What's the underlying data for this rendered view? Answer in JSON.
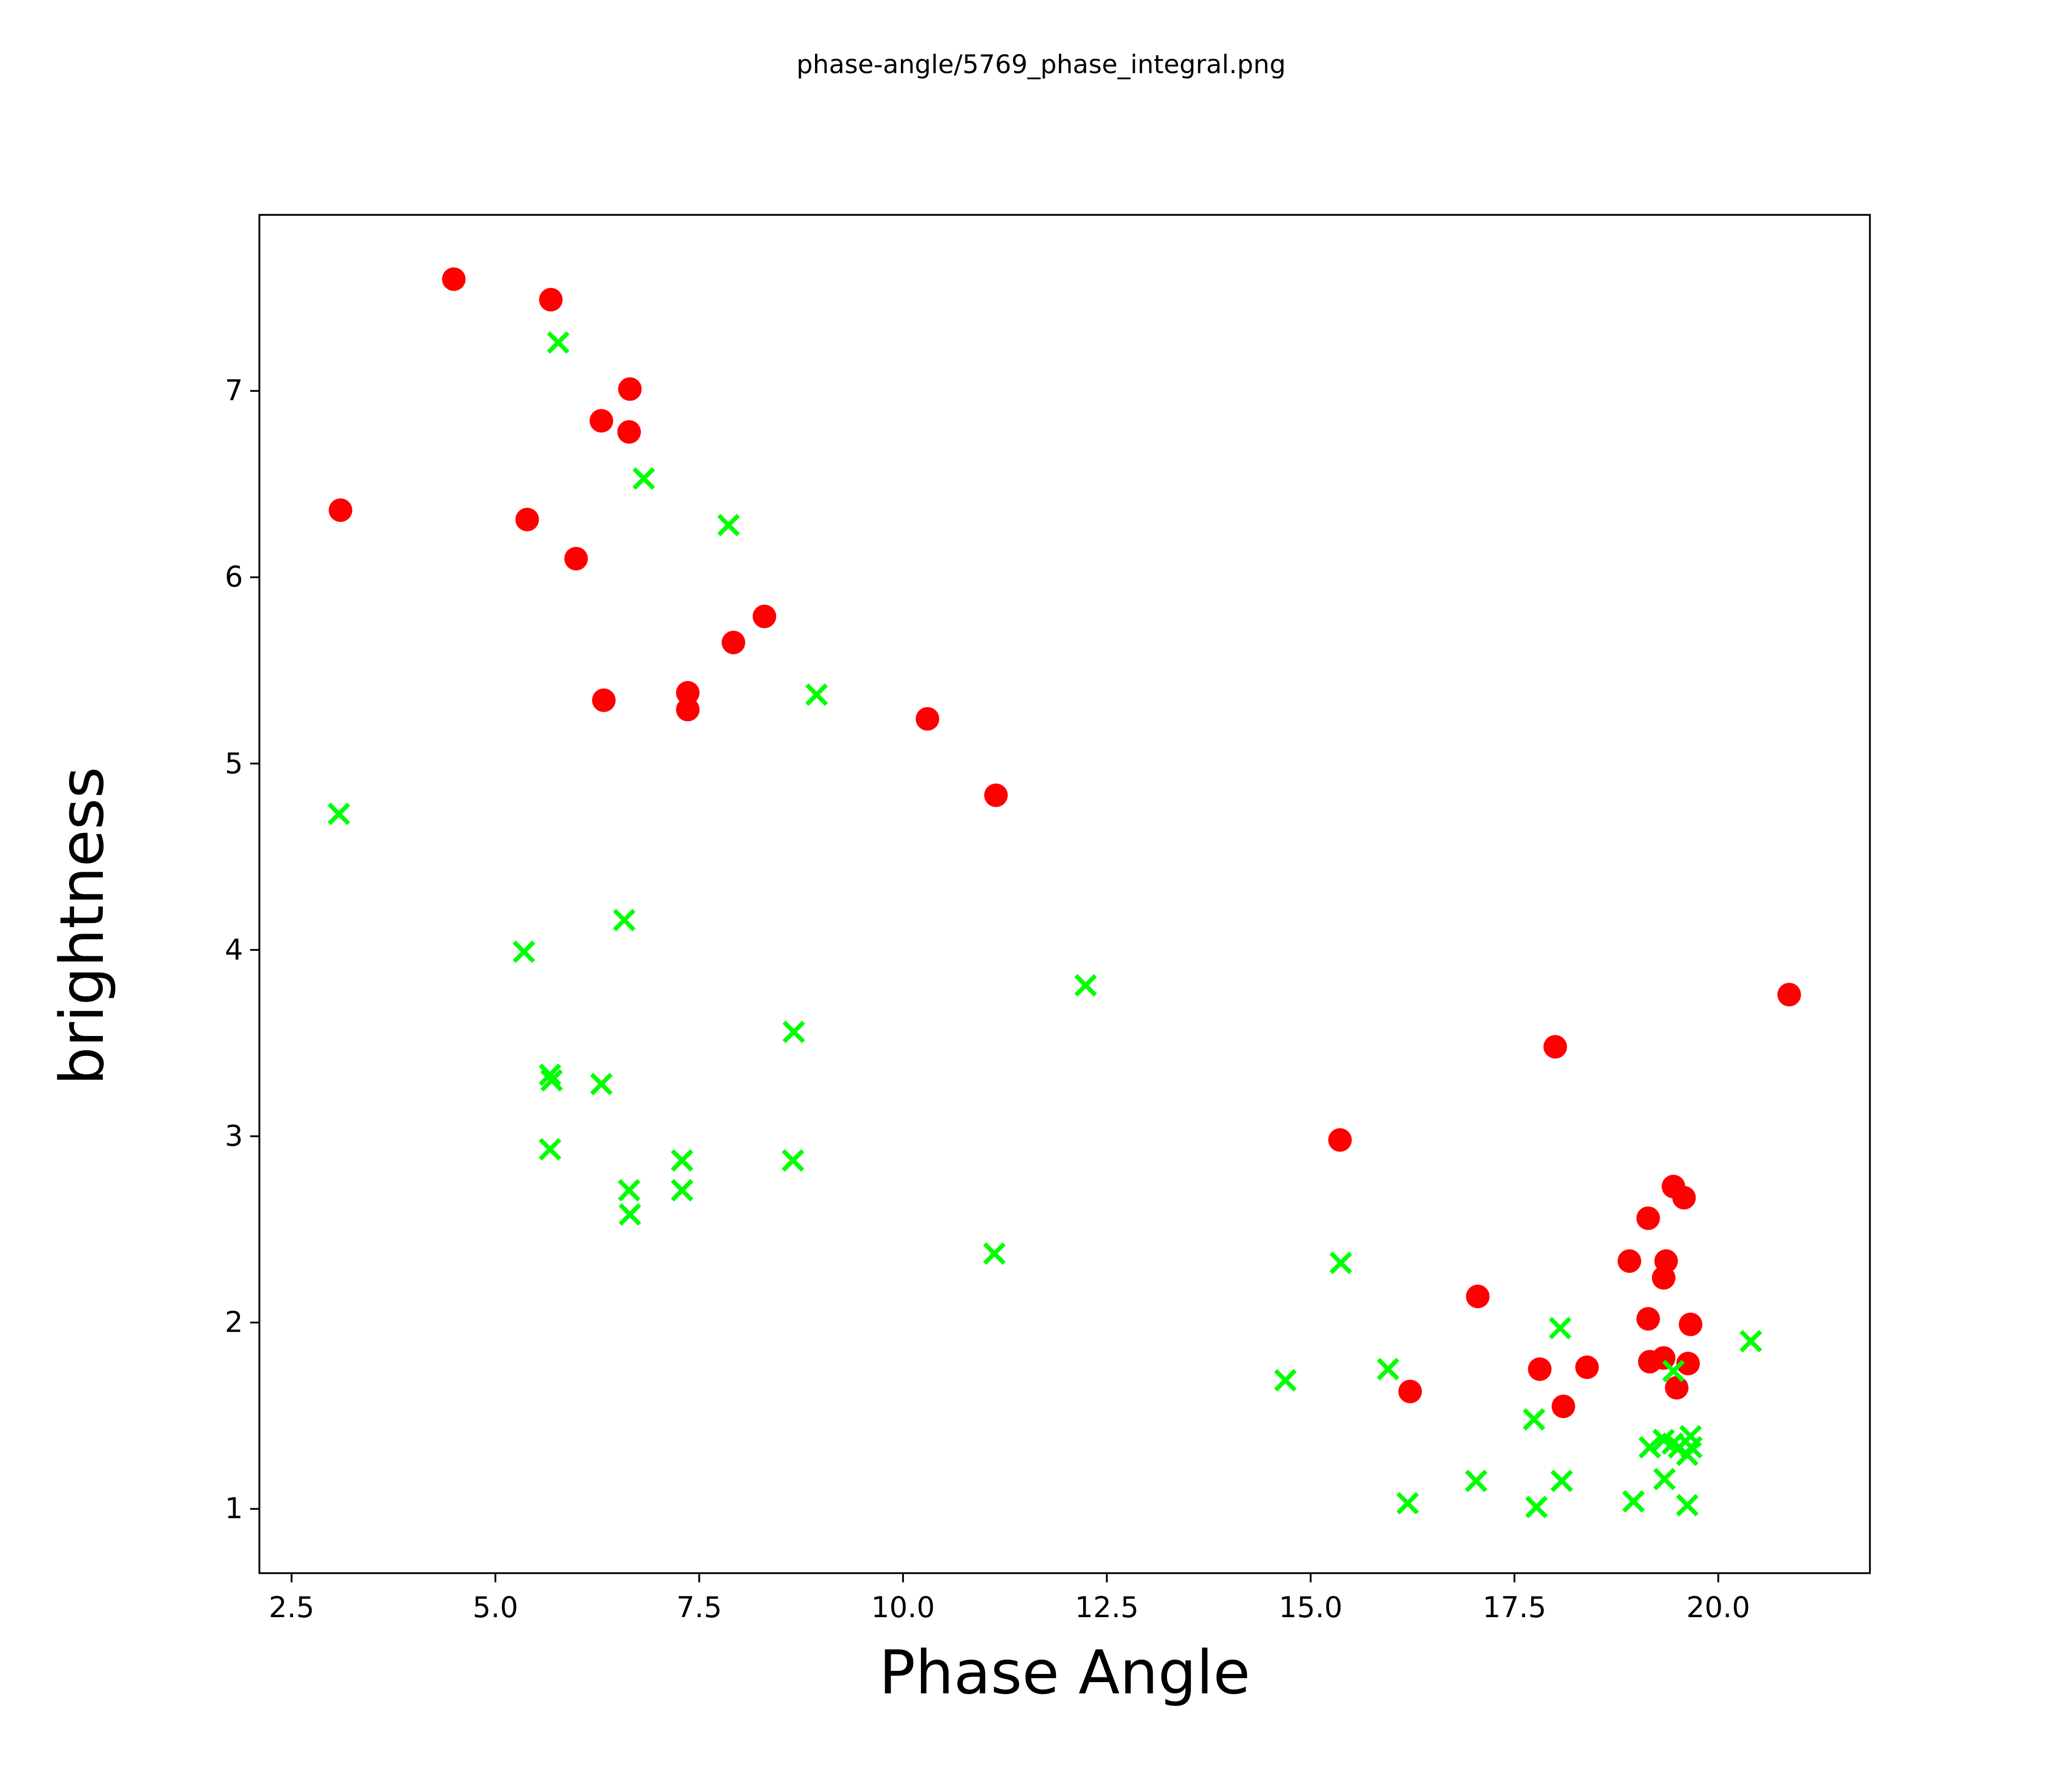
{
  "title": "phase-angle/5769_phase_integral.png",
  "colors": {
    "background": "#ffffff",
    "axis": "#000000",
    "red_marker": "#ff0000",
    "green_marker": "#00ff00"
  },
  "chart_data": {
    "type": "scatter",
    "title": "phase-angle/5769_phase_integral.png",
    "xlabel": "Phase Angle",
    "ylabel": "brightness",
    "xlim": [
      2.105,
      21.86
    ],
    "ylim": [
      0.655,
      7.945
    ],
    "x_ticks": [
      2.5,
      5.0,
      7.5,
      10.0,
      12.5,
      15.0,
      17.5,
      20.0
    ],
    "x_tick_labels": [
      "2.5",
      "5.0",
      "7.5",
      "10.0",
      "12.5",
      "15.0",
      "17.5",
      "20.0"
    ],
    "y_ticks": [
      1,
      2,
      3,
      4,
      5,
      6,
      7
    ],
    "y_tick_labels": [
      "1",
      "2",
      "3",
      "4",
      "5",
      "6",
      "7"
    ],
    "grid": false,
    "legend_position": "none",
    "series": [
      {
        "name": "red-circles",
        "marker": "circle",
        "color": "#ff0000",
        "points": [
          [
            4.49,
            7.6
          ],
          [
            5.68,
            7.49
          ],
          [
            6.65,
            7.01
          ],
          [
            6.3,
            6.84
          ],
          [
            6.64,
            6.78
          ],
          [
            3.1,
            6.36
          ],
          [
            5.39,
            6.31
          ],
          [
            5.99,
            6.1
          ],
          [
            8.3,
            5.79
          ],
          [
            7.92,
            5.65
          ],
          [
            6.33,
            5.34
          ],
          [
            7.36,
            5.38
          ],
          [
            7.36,
            5.29
          ],
          [
            10.3,
            5.24
          ],
          [
            11.14,
            4.83
          ],
          [
            20.87,
            3.76
          ],
          [
            18.0,
            3.48
          ],
          [
            15.36,
            2.98
          ],
          [
            17.05,
            2.14
          ],
          [
            16.22,
            1.63
          ],
          [
            17.81,
            1.75
          ],
          [
            18.39,
            1.76
          ],
          [
            18.1,
            1.55
          ],
          [
            19.45,
            2.73
          ],
          [
            19.58,
            2.67
          ],
          [
            19.14,
            2.56
          ],
          [
            18.91,
            2.33
          ],
          [
            19.36,
            2.33
          ],
          [
            19.33,
            2.24
          ],
          [
            19.14,
            2.02
          ],
          [
            19.66,
            1.99
          ],
          [
            19.16,
            1.79
          ],
          [
            19.33,
            1.81
          ],
          [
            19.63,
            1.78
          ],
          [
            19.49,
            1.65
          ]
        ]
      },
      {
        "name": "green-crosses",
        "marker": "x",
        "color": "#00ff00",
        "points": [
          [
            5.77,
            7.26
          ],
          [
            6.82,
            6.53
          ],
          [
            7.86,
            6.28
          ],
          [
            8.94,
            5.37
          ],
          [
            3.08,
            4.73
          ],
          [
            6.58,
            4.16
          ],
          [
            5.35,
            3.99
          ],
          [
            8.66,
            3.56
          ],
          [
            5.67,
            3.33
          ],
          [
            5.69,
            3.3
          ],
          [
            6.3,
            3.28
          ],
          [
            5.67,
            2.93
          ],
          [
            7.29,
            2.87
          ],
          [
            8.65,
            2.87
          ],
          [
            6.64,
            2.71
          ],
          [
            7.29,
            2.71
          ],
          [
            6.65,
            2.58
          ],
          [
            12.24,
            3.81
          ],
          [
            11.12,
            2.37
          ],
          [
            15.37,
            2.32
          ],
          [
            18.06,
            1.97
          ],
          [
            15.95,
            1.75
          ],
          [
            14.69,
            1.69
          ],
          [
            17.74,
            1.48
          ],
          [
            20.4,
            1.9
          ],
          [
            19.45,
            1.74
          ],
          [
            19.16,
            1.33
          ],
          [
            19.33,
            1.37
          ],
          [
            19.44,
            1.35
          ],
          [
            19.52,
            1.33
          ],
          [
            19.62,
            1.29
          ],
          [
            19.66,
            1.39
          ],
          [
            19.67,
            1.33
          ],
          [
            16.19,
            1.03
          ],
          [
            17.03,
            1.15
          ],
          [
            18.08,
            1.15
          ],
          [
            17.77,
            1.01
          ],
          [
            18.96,
            1.04
          ],
          [
            19.34,
            1.16
          ],
          [
            19.62,
            1.02
          ]
        ]
      }
    ]
  }
}
